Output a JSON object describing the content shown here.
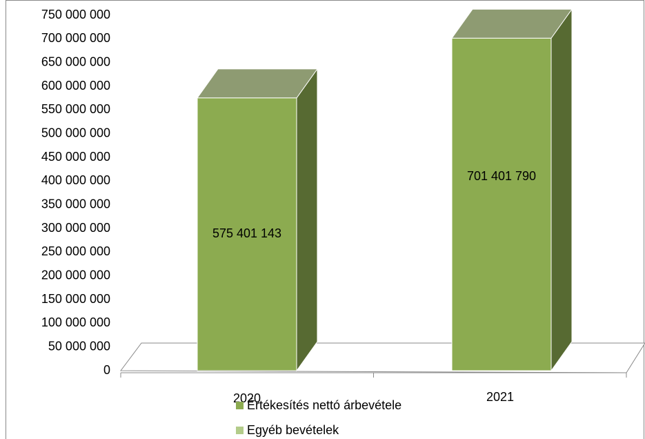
{
  "chart_data": {
    "type": "bar3d",
    "categories": [
      "2020",
      "2021"
    ],
    "series": [
      {
        "name": "Értékesítés nettó árbevétele",
        "color": "#8cab50",
        "values": [
          575401143,
          701401790
        ],
        "value_labels": [
          "575 401 143",
          "701 401 790"
        ]
      },
      {
        "name": "Egyéb bevételek",
        "color": "#b3cc8a",
        "values": [
          null,
          null
        ]
      }
    ],
    "ylim": [
      0,
      750000000
    ],
    "yticks": [
      {
        "value": 0,
        "label": "0"
      },
      {
        "value": 50000000,
        "label": "50 000 000"
      },
      {
        "value": 100000000,
        "label": "100 000 000"
      },
      {
        "value": 150000000,
        "label": "150 000 000"
      },
      {
        "value": 200000000,
        "label": "200 000 000"
      },
      {
        "value": 250000000,
        "label": "250 000 000"
      },
      {
        "value": 300000000,
        "label": "300 000 000"
      },
      {
        "value": 350000000,
        "label": "350 000 000"
      },
      {
        "value": 400000000,
        "label": "400 000 000"
      },
      {
        "value": 450000000,
        "label": "450 000 000"
      },
      {
        "value": 500000000,
        "label": "500 000 000"
      },
      {
        "value": 550000000,
        "label": "550 000 000"
      },
      {
        "value": 600000000,
        "label": "600 000 000"
      },
      {
        "value": 650000000,
        "label": "650 000 000"
      },
      {
        "value": 700000000,
        "label": "700 000 000"
      },
      {
        "value": 750000000,
        "label": "750 000 000"
      }
    ],
    "grid": false,
    "legend": "bottom"
  }
}
